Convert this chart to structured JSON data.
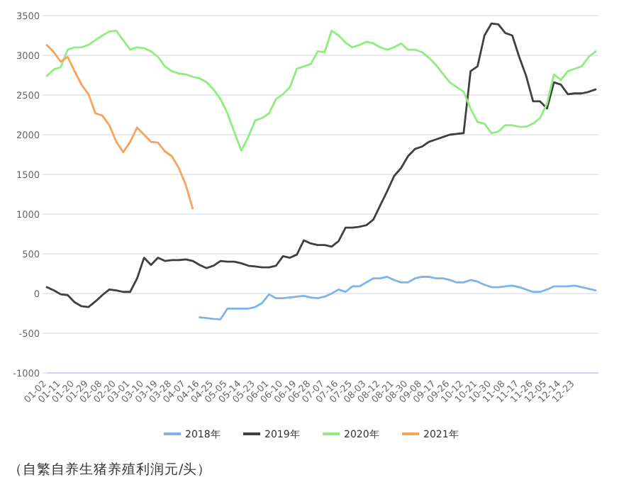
{
  "chart_data": {
    "type": "line",
    "categories": [
      "01-02",
      null,
      "01-11",
      null,
      "01-20",
      null,
      "01-29",
      null,
      "02-08",
      null,
      "02-20",
      null,
      "03-01",
      null,
      "03-10",
      null,
      "03-19",
      null,
      "03-28",
      null,
      "04-07",
      null,
      "04-16",
      null,
      "04-25",
      null,
      "05-05",
      null,
      "05-14",
      null,
      "05-23",
      null,
      "06-01",
      null,
      "06-10",
      null,
      "06-19",
      null,
      "06-28",
      null,
      "07-07",
      null,
      "07-16",
      null,
      "07-25",
      null,
      "08-03",
      null,
      "08-12",
      null,
      "08-21",
      null,
      "08-30",
      null,
      "09-08",
      null,
      "09-17",
      null,
      "09-26",
      null,
      "10-12",
      null,
      "10-21",
      null,
      "10-30",
      null,
      "11-08",
      null,
      "11-17",
      null,
      "11-26",
      null,
      "12-05",
      null,
      "12-14",
      null,
      "12-23",
      null,
      null,
      null
    ],
    "ylim": [
      -1000,
      3500
    ],
    "yticks": [
      -1000,
      -500,
      0,
      500,
      1000,
      1500,
      2000,
      2500,
      3000,
      3500
    ],
    "grid": "y",
    "legend": "bottom",
    "marker": "none",
    "line_style": "solid",
    "series": [
      {
        "name": "2018年",
        "color": "#7cb5ec",
        "values": [
          null,
          null,
          null,
          null,
          null,
          null,
          null,
          null,
          null,
          null,
          null,
          null,
          null,
          null,
          null,
          null,
          null,
          null,
          null,
          null,
          null,
          null,
          -300,
          -310,
          -320,
          -325,
          -190,
          -190,
          -190,
          -190,
          -170,
          -120,
          -10,
          -60,
          -60,
          -50,
          -40,
          -30,
          -50,
          -60,
          -40,
          0,
          50,
          20,
          90,
          90,
          140,
          190,
          190,
          210,
          170,
          140,
          140,
          190,
          210,
          210,
          190,
          190,
          170,
          140,
          140,
          170,
          150,
          110,
          80,
          80,
          90,
          100,
          80,
          50,
          20,
          20,
          50,
          90,
          90,
          90,
          100,
          80,
          60,
          40
        ]
      },
      {
        "name": "2019年",
        "color": "#404040",
        "values": [
          80,
          40,
          -10,
          -20,
          -110,
          -160,
          -170,
          -100,
          -20,
          50,
          40,
          20,
          20,
          190,
          450,
          360,
          450,
          410,
          420,
          420,
          430,
          410,
          360,
          320,
          350,
          410,
          400,
          400,
          380,
          350,
          340,
          330,
          330,
          350,
          470,
          450,
          490,
          670,
          630,
          610,
          610,
          590,
          660,
          830,
          830,
          840,
          860,
          930,
          1110,
          1290,
          1480,
          1580,
          1730,
          1820,
          1850,
          1910,
          1940,
          1970,
          2000,
          2010,
          2020,
          2800,
          2860,
          3250,
          3400,
          3390,
          3280,
          3250,
          2980,
          2740,
          2420,
          2420,
          2330,
          2660,
          2630,
          2510,
          2520,
          2520,
          2540,
          2570
        ]
      },
      {
        "name": "2020年",
        "color": "#90ed7d",
        "values": [
          2740,
          2820,
          2850,
          3070,
          3100,
          3100,
          3130,
          3190,
          3250,
          3300,
          3310,
          3190,
          3070,
          3100,
          3090,
          3050,
          2980,
          2860,
          2800,
          2770,
          2760,
          2730,
          2710,
          2660,
          2570,
          2450,
          2270,
          2030,
          1800,
          1970,
          2180,
          2210,
          2270,
          2450,
          2510,
          2600,
          2830,
          2860,
          2890,
          3050,
          3040,
          3310,
          3250,
          3160,
          3100,
          3130,
          3170,
          3150,
          3100,
          3070,
          3100,
          3150,
          3070,
          3070,
          3040,
          2970,
          2880,
          2770,
          2660,
          2600,
          2540,
          2330,
          2160,
          2140,
          2020,
          2040,
          2120,
          2120,
          2100,
          2100,
          2140,
          2210,
          2390,
          2760,
          2690,
          2800,
          2830,
          2860,
          2980,
          3050
        ]
      },
      {
        "name": "2021年",
        "color": "#f7a35c",
        "values": [
          3130,
          3040,
          2920,
          2980,
          2800,
          2630,
          2510,
          2270,
          2240,
          2120,
          1910,
          1780,
          1910,
          2090,
          2000,
          1910,
          1900,
          1790,
          1730,
          1580,
          1370,
          1070,
          null,
          null,
          null,
          null,
          null,
          null,
          null,
          null,
          null,
          null,
          null,
          null,
          null,
          null,
          null,
          null,
          null,
          null,
          null,
          null,
          null,
          null,
          null,
          null,
          null,
          null,
          null,
          null,
          null,
          null,
          null,
          null,
          null,
          null,
          null,
          null,
          null,
          null,
          null,
          null,
          null,
          null,
          null,
          null,
          null,
          null,
          null,
          null,
          null,
          null,
          null,
          null,
          null,
          null,
          null,
          null,
          null,
          null
        ]
      }
    ],
    "annotations": [
      "（自繁自养生猪养殖利润元/头）"
    ]
  }
}
